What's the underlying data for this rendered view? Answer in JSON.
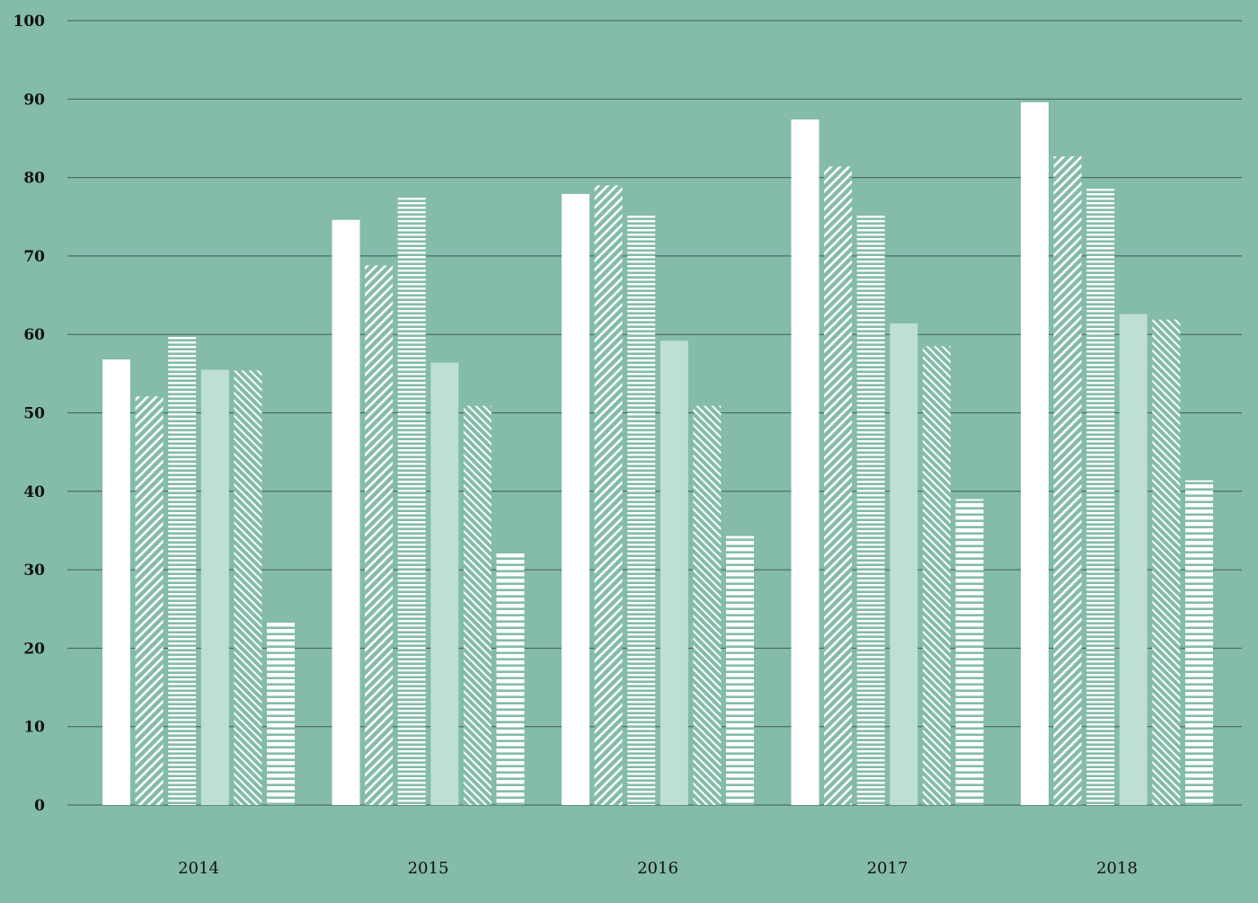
{
  "chart_data": {
    "type": "bar",
    "categories": [
      "2014",
      "2015",
      "2016",
      "2017",
      "2018"
    ],
    "series": [
      {
        "fill": "solid-white",
        "values": [
          56.8,
          74.6,
          77.9,
          87.4,
          89.6
        ]
      },
      {
        "fill": "hatch-forward",
        "values": [
          52.1,
          68.8,
          79.0,
          81.4,
          82.7
        ]
      },
      {
        "fill": "fine-stripes",
        "values": [
          59.7,
          77.6,
          75.4,
          75.4,
          78.7
        ]
      },
      {
        "fill": "solid-light",
        "values": [
          55.5,
          56.4,
          59.2,
          61.4,
          62.6
        ]
      },
      {
        "fill": "hatch-back",
        "values": [
          55.4,
          50.9,
          50.9,
          58.5,
          61.9
        ]
      },
      {
        "fill": "bold-stripes",
        "values": [
          23.4,
          32.1,
          34.3,
          39.0,
          41.4
        ]
      }
    ],
    "ylim": [
      0,
      100
    ],
    "yticks": [
      "0",
      "10",
      "20",
      "30",
      "40",
      "50",
      "60",
      "70",
      "80",
      "90",
      "100"
    ],
    "grid": true,
    "legend": "none",
    "colors": {
      "background": "#84bbab",
      "bar_white": "#ffffff",
      "bar_light": "#bddfd4",
      "gridline": "#3e5e55"
    }
  }
}
